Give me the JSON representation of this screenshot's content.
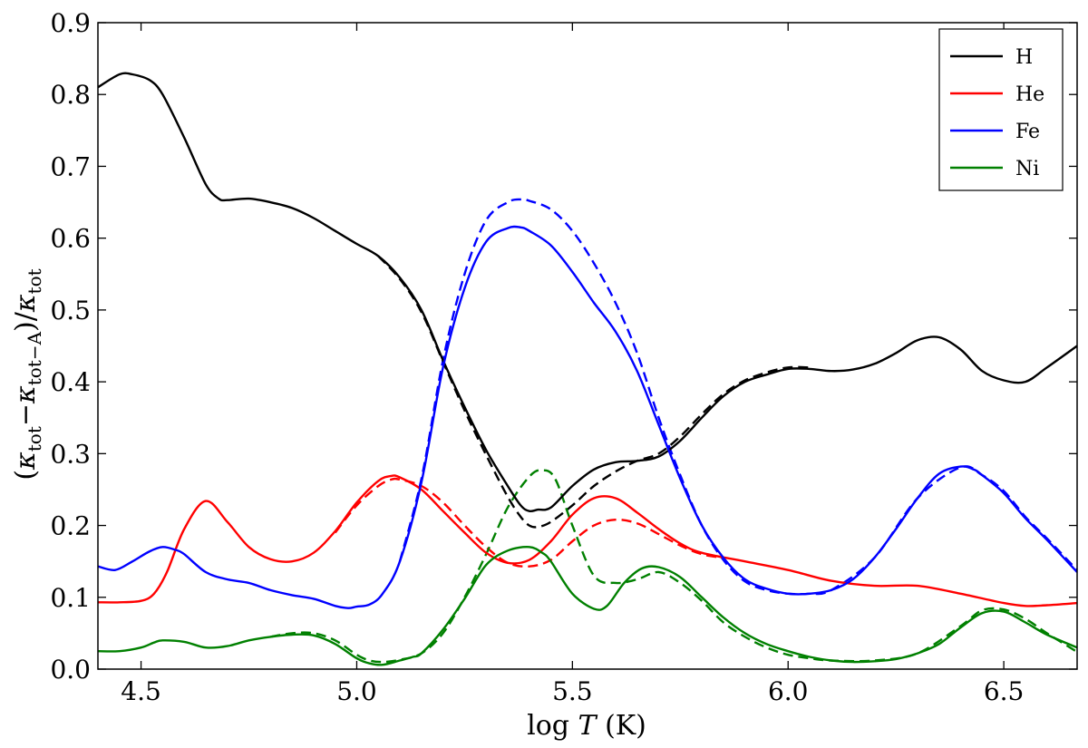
{
  "chart_data": {
    "type": "line",
    "title": "",
    "xlabel": "log T (K)",
    "xlabel_parts": {
      "prefix": "log ",
      "var": "T",
      "suffix": " (K)"
    },
    "ylabel": "(κtot−κtot−A)/κtot",
    "ylabel_parts": {
      "open": "(",
      "k1": "κ",
      "s1": "tot",
      "minus": "−",
      "k2": "κ",
      "s2": "tot−A",
      "close": ")/",
      "k3": "κ",
      "s3": "tot"
    },
    "xlim": [
      4.4,
      6.67
    ],
    "ylim": [
      0.0,
      0.9
    ],
    "xticks": [
      4.5,
      5.0,
      5.5,
      6.0,
      6.5
    ],
    "xtick_labels": [
      "4.5",
      "5.0",
      "5.5",
      "6.0",
      "6.5"
    ],
    "yticks": [
      0.0,
      0.1,
      0.2,
      0.3,
      0.4,
      0.5,
      0.6,
      0.7,
      0.8,
      0.9
    ],
    "ytick_labels": [
      "0.0",
      "0.1",
      "0.2",
      "0.3",
      "0.4",
      "0.5",
      "0.6",
      "0.7",
      "0.8",
      "0.9"
    ],
    "legend_position": "top-right",
    "series": [
      {
        "name": "H",
        "color": "#000000",
        "style": "solid",
        "x": [
          4.4,
          4.45,
          4.48,
          4.52,
          4.55,
          4.6,
          4.65,
          4.68,
          4.7,
          4.75,
          4.8,
          4.85,
          4.9,
          4.95,
          5.0,
          5.05,
          5.1,
          5.15,
          5.2,
          5.25,
          5.3,
          5.35,
          5.38,
          5.4,
          5.42,
          5.45,
          5.5,
          5.55,
          5.6,
          5.65,
          5.7,
          5.75,
          5.8,
          5.85,
          5.9,
          5.95,
          6.0,
          6.05,
          6.1,
          6.15,
          6.2,
          6.25,
          6.3,
          6.35,
          6.4,
          6.45,
          6.5,
          6.55,
          6.6,
          6.67
        ],
        "y": [
          0.81,
          0.828,
          0.828,
          0.82,
          0.8,
          0.74,
          0.675,
          0.655,
          0.653,
          0.655,
          0.65,
          0.642,
          0.628,
          0.61,
          0.592,
          0.575,
          0.545,
          0.5,
          0.43,
          0.365,
          0.305,
          0.255,
          0.228,
          0.22,
          0.222,
          0.225,
          0.255,
          0.278,
          0.288,
          0.29,
          0.296,
          0.318,
          0.35,
          0.38,
          0.4,
          0.41,
          0.418,
          0.418,
          0.415,
          0.417,
          0.425,
          0.44,
          0.458,
          0.462,
          0.445,
          0.415,
          0.402,
          0.4,
          0.42,
          0.45
        ]
      },
      {
        "name": "He",
        "color": "#ff0000",
        "style": "solid",
        "x": [
          4.4,
          4.45,
          4.5,
          4.53,
          4.56,
          4.6,
          4.65,
          4.7,
          4.75,
          4.8,
          4.85,
          4.9,
          4.95,
          5.0,
          5.05,
          5.08,
          5.1,
          5.15,
          5.2,
          5.25,
          5.3,
          5.35,
          5.4,
          5.45,
          5.5,
          5.55,
          5.6,
          5.65,
          5.7,
          5.75,
          5.8,
          5.9,
          6.0,
          6.1,
          6.2,
          6.3,
          6.4,
          6.5,
          6.55,
          6.6,
          6.67
        ],
        "y": [
          0.093,
          0.093,
          0.095,
          0.105,
          0.135,
          0.195,
          0.234,
          0.205,
          0.17,
          0.153,
          0.15,
          0.162,
          0.192,
          0.232,
          0.262,
          0.269,
          0.267,
          0.25,
          0.22,
          0.19,
          0.162,
          0.148,
          0.152,
          0.178,
          0.215,
          0.238,
          0.238,
          0.218,
          0.195,
          0.175,
          0.162,
          0.15,
          0.138,
          0.123,
          0.116,
          0.116,
          0.105,
          0.092,
          0.088,
          0.089,
          0.092
        ]
      },
      {
        "name": "Fe",
        "color": "#0000ff",
        "style": "solid",
        "x": [
          4.4,
          4.44,
          4.48,
          4.52,
          4.55,
          4.58,
          4.6,
          4.65,
          4.7,
          4.75,
          4.8,
          4.85,
          4.9,
          4.95,
          4.98,
          5.0,
          5.03,
          5.06,
          5.1,
          5.15,
          5.2,
          5.25,
          5.3,
          5.35,
          5.38,
          5.4,
          5.45,
          5.5,
          5.55,
          5.6,
          5.65,
          5.7,
          5.75,
          5.8,
          5.85,
          5.9,
          5.95,
          6.0,
          6.05,
          6.1,
          6.15,
          6.2,
          6.25,
          6.3,
          6.35,
          6.4,
          6.43,
          6.45,
          6.5,
          6.55,
          6.6,
          6.67
        ],
        "y": [
          0.143,
          0.138,
          0.15,
          0.164,
          0.17,
          0.166,
          0.16,
          0.135,
          0.125,
          0.12,
          0.11,
          0.103,
          0.098,
          0.088,
          0.085,
          0.087,
          0.09,
          0.105,
          0.15,
          0.26,
          0.42,
          0.53,
          0.595,
          0.614,
          0.615,
          0.61,
          0.59,
          0.553,
          0.51,
          0.47,
          0.415,
          0.34,
          0.265,
          0.2,
          0.155,
          0.125,
          0.112,
          0.105,
          0.105,
          0.11,
          0.125,
          0.155,
          0.195,
          0.238,
          0.272,
          0.282,
          0.278,
          0.27,
          0.245,
          0.21,
          0.18,
          0.135
        ]
      },
      {
        "name": "Ni",
        "color": "#008000",
        "style": "solid",
        "x": [
          4.4,
          4.45,
          4.5,
          4.53,
          4.55,
          4.6,
          4.65,
          4.7,
          4.75,
          4.8,
          4.85,
          4.9,
          4.95,
          5.0,
          5.03,
          5.06,
          5.1,
          5.13,
          5.15,
          5.2,
          5.25,
          5.3,
          5.35,
          5.4,
          5.43,
          5.45,
          5.5,
          5.55,
          5.58,
          5.62,
          5.66,
          5.7,
          5.75,
          5.8,
          5.85,
          5.9,
          5.95,
          6.0,
          6.05,
          6.1,
          6.15,
          6.2,
          6.25,
          6.3,
          6.35,
          6.4,
          6.45,
          6.5,
          6.55,
          6.6,
          6.67
        ],
        "y": [
          0.025,
          0.025,
          0.03,
          0.037,
          0.04,
          0.038,
          0.03,
          0.032,
          0.04,
          0.045,
          0.048,
          0.047,
          0.035,
          0.015,
          0.008,
          0.006,
          0.012,
          0.017,
          0.022,
          0.055,
          0.098,
          0.145,
          0.165,
          0.17,
          0.162,
          0.15,
          0.105,
          0.084,
          0.088,
          0.12,
          0.14,
          0.142,
          0.128,
          0.1,
          0.072,
          0.05,
          0.035,
          0.025,
          0.017,
          0.012,
          0.01,
          0.011,
          0.014,
          0.022,
          0.035,
          0.058,
          0.078,
          0.08,
          0.065,
          0.048,
          0.03
        ]
      },
      {
        "name": "H (dashed)",
        "color": "#000000",
        "style": "dashed",
        "x": [
          5.05,
          5.1,
          5.15,
          5.2,
          5.25,
          5.3,
          5.35,
          5.38,
          5.4,
          5.42,
          5.45,
          5.5,
          5.55,
          5.6,
          5.65,
          5.7,
          5.75,
          5.8,
          5.85,
          5.9,
          5.95,
          6.0,
          6.05
        ],
        "y": [
          0.575,
          0.543,
          0.497,
          0.428,
          0.36,
          0.298,
          0.24,
          0.212,
          0.2,
          0.198,
          0.205,
          0.228,
          0.255,
          0.275,
          0.29,
          0.3,
          0.324,
          0.355,
          0.383,
          0.402,
          0.413,
          0.42,
          0.42
        ]
      },
      {
        "name": "He (dashed)",
        "color": "#ff0000",
        "style": "dashed",
        "x": [
          4.95,
          5.0,
          5.05,
          5.08,
          5.1,
          5.15,
          5.2,
          5.25,
          5.3,
          5.35,
          5.4,
          5.45,
          5.5,
          5.55,
          5.6,
          5.65,
          5.7,
          5.75,
          5.8,
          5.85
        ],
        "y": [
          0.19,
          0.228,
          0.255,
          0.264,
          0.264,
          0.255,
          0.232,
          0.2,
          0.17,
          0.148,
          0.143,
          0.152,
          0.178,
          0.2,
          0.208,
          0.203,
          0.188,
          0.172,
          0.16,
          0.155
        ]
      },
      {
        "name": "Fe (dashed)",
        "color": "#0000ff",
        "style": "dashed",
        "x": [
          5.1,
          5.15,
          5.2,
          5.25,
          5.3,
          5.35,
          5.38,
          5.4,
          5.45,
          5.5,
          5.55,
          5.6,
          5.65,
          5.7,
          5.75,
          5.8,
          5.85,
          5.9,
          5.95,
          6.0,
          6.05,
          6.1,
          6.2,
          6.3,
          6.4,
          6.45,
          6.5,
          6.55,
          6.6,
          6.67
        ],
        "y": [
          0.15,
          0.265,
          0.43,
          0.55,
          0.625,
          0.65,
          0.654,
          0.652,
          0.64,
          0.61,
          0.565,
          0.51,
          0.44,
          0.35,
          0.27,
          0.2,
          0.152,
          0.122,
          0.11,
          0.105,
          0.105,
          0.11,
          0.155,
          0.238,
          0.281,
          0.27,
          0.248,
          0.212,
          0.182,
          0.138
        ]
      },
      {
        "name": "Ni (dashed)",
        "color": "#008000",
        "style": "dashed",
        "x": [
          4.8,
          4.85,
          4.9,
          4.95,
          5.0,
          5.03,
          5.06,
          5.1,
          5.15,
          5.2,
          5.25,
          5.3,
          5.35,
          5.4,
          5.43,
          5.46,
          5.5,
          5.55,
          5.6,
          5.65,
          5.7,
          5.75,
          5.8,
          5.85,
          5.9,
          5.95,
          6.0,
          6.05,
          6.1,
          6.2,
          6.3,
          6.4,
          6.45,
          6.5,
          6.55,
          6.6,
          6.67
        ],
        "y": [
          0.045,
          0.05,
          0.05,
          0.04,
          0.02,
          0.012,
          0.01,
          0.013,
          0.022,
          0.05,
          0.1,
          0.16,
          0.225,
          0.268,
          0.277,
          0.265,
          0.2,
          0.13,
          0.12,
          0.125,
          0.135,
          0.12,
          0.095,
          0.065,
          0.045,
          0.03,
          0.02,
          0.015,
          0.012,
          0.012,
          0.022,
          0.06,
          0.082,
          0.083,
          0.07,
          0.05,
          0.024
        ]
      }
    ]
  }
}
